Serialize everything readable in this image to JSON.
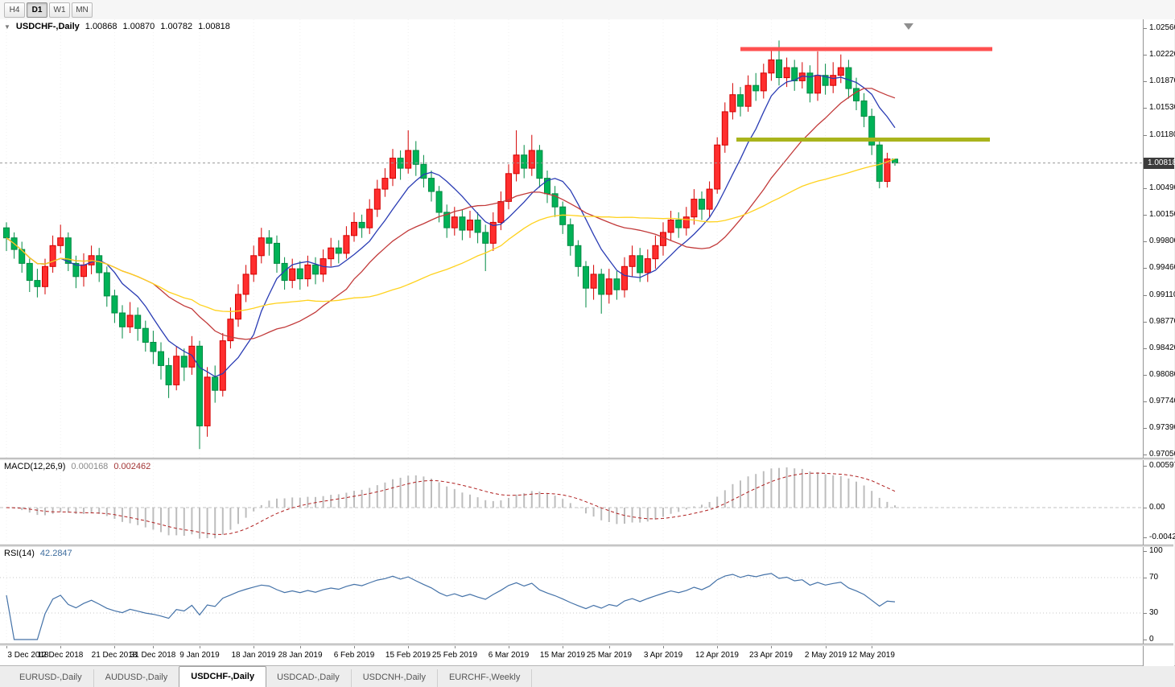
{
  "toolbar": {
    "timeframes": [
      {
        "label": "H4",
        "active": false
      },
      {
        "label": "D1",
        "active": true
      },
      {
        "label": "W1",
        "active": false
      },
      {
        "label": "MN",
        "active": false
      }
    ]
  },
  "chart": {
    "header": {
      "symbol": "USDCHF-,Daily",
      "open": "1.00868",
      "high": "1.00870",
      "low": "1.00782",
      "close": "1.00818"
    },
    "price_axis": {
      "current": {
        "label": "1.00818",
        "value": 1.00818
      },
      "ticks": [
        {
          "label": "1.02560",
          "value": 1.0256
        },
        {
          "label": "1.02220",
          "value": 1.0222
        },
        {
          "label": "1.01870",
          "value": 1.0187
        },
        {
          "label": "1.01530",
          "value": 1.0153
        },
        {
          "label": "1.01180",
          "value": 1.0118
        },
        {
          "label": "1.00490",
          "value": 1.0049
        },
        {
          "label": "1.00150",
          "value": 1.0015
        },
        {
          "label": "0.99800",
          "value": 0.998
        },
        {
          "label": "0.99460",
          "value": 0.9946
        },
        {
          "label": "0.99110",
          "value": 0.9911
        },
        {
          "label": "0.98770",
          "value": 0.9877
        },
        {
          "label": "0.98420",
          "value": 0.9842
        },
        {
          "label": "0.98080",
          "value": 0.9808
        },
        {
          "label": "0.97740",
          "value": 0.9774
        },
        {
          "label": "0.97390",
          "value": 0.9739
        },
        {
          "label": "0.97050",
          "value": 0.9705
        }
      ]
    }
  },
  "macd": {
    "label": "MACD(12,26,9)",
    "main_value": "0.000168",
    "signal_value": "0.002462",
    "histogram_color": "#bdbdbd",
    "signal_color": "#b02020",
    "axis": [
      {
        "label": "0.00597",
        "value": 0.00597
      },
      {
        "label": "0.00",
        "value": 0
      },
      {
        "label": "-0.00424",
        "value": -0.00424
      }
    ]
  },
  "rsi": {
    "label": "RSI(14)",
    "value": "42.2847",
    "line_color": "#4472a8",
    "levels": [
      70,
      30
    ],
    "axis": [
      {
        "label": "100",
        "value": 100
      },
      {
        "label": "70",
        "value": 70
      },
      {
        "label": "30",
        "value": 30
      },
      {
        "label": "0",
        "value": 0
      }
    ]
  },
  "tabs": {
    "items": [
      {
        "label": "EURUSD-,Daily",
        "active": false
      },
      {
        "label": "AUDUSD-,Daily",
        "active": false
      },
      {
        "label": "USDCHF-,Daily",
        "active": true
      },
      {
        "label": "USDCAD-,Daily",
        "active": false
      },
      {
        "label": "USDCNH-,Daily",
        "active": false
      },
      {
        "label": "EURCHF-,Weekly",
        "active": false
      }
    ]
  },
  "chart_data": {
    "type": "candlestick",
    "title": "USDCHF-,Daily",
    "y_range": [
      0.9705,
      1.0256
    ],
    "bull_color": "#ff2e2e",
    "bull_stroke": "#d40000",
    "bear_color": "#00b257",
    "bear_stroke": "#008a43",
    "moving_averages": [
      {
        "period": 8,
        "color": "#2a3cb4"
      },
      {
        "period": 20,
        "color": "#c23a3a"
      },
      {
        "period": 40,
        "color": "#ffd21e"
      }
    ],
    "levels": [
      {
        "name": "resistance",
        "price": 1.0229,
        "i1": 95.0,
        "i2": 127.6,
        "color": "#ff5050",
        "width": 5
      },
      {
        "name": "support",
        "price": 1.0112,
        "i1": 94.5,
        "i2": 127.3,
        "color": "#a9b41c",
        "width": 5
      }
    ],
    "x_labels": [
      [
        "3 Dec 2018",
        0
      ],
      [
        "12 Dec 2018",
        7
      ],
      [
        "21 Dec 2018",
        14
      ],
      [
        "31 Dec 2018",
        19
      ],
      [
        "9 Jan 2019",
        25
      ],
      [
        "18 Jan 2019",
        32
      ],
      [
        "28 Jan 2019",
        38
      ],
      [
        "6 Feb 2019",
        45
      ],
      [
        "15 Feb 2019",
        52
      ],
      [
        "25 Feb 2019",
        58
      ],
      [
        "6 Mar 2019",
        65
      ],
      [
        "15 Mar 2019",
        72
      ],
      [
        "25 Mar 2019",
        78
      ],
      [
        "3 Apr 2019",
        85
      ],
      [
        "12 Apr 2019",
        92
      ],
      [
        "23 Apr 2019",
        99
      ],
      [
        "2 May 2019",
        106
      ],
      [
        "12 May 2019",
        112
      ]
    ],
    "candles": [
      [
        0.9998,
        1.0005,
        0.9968,
        0.9985
      ],
      [
        0.9985,
        0.9992,
        0.9958,
        0.997
      ],
      [
        0.997,
        0.998,
        0.994,
        0.9952
      ],
      [
        0.9952,
        0.9958,
        0.9915,
        0.993
      ],
      [
        0.993,
        0.9945,
        0.9908,
        0.9922
      ],
      [
        0.9922,
        0.9958,
        0.9912,
        0.9948
      ],
      [
        0.9948,
        0.9988,
        0.994,
        0.9975
      ],
      [
        0.9975,
        1.0002,
        0.9965,
        0.9985
      ],
      [
        0.9985,
        0.9992,
        0.9942,
        0.9952
      ],
      [
        0.9952,
        0.9962,
        0.992,
        0.9935
      ],
      [
        0.9935,
        0.9965,
        0.9922,
        0.995
      ],
      [
        0.995,
        0.9975,
        0.9938,
        0.9962
      ],
      [
        0.9962,
        0.9972,
        0.9928,
        0.994
      ],
      [
        0.994,
        0.9948,
        0.9896,
        0.991
      ],
      [
        0.991,
        0.9918,
        0.9875,
        0.9888
      ],
      [
        0.9888,
        0.9898,
        0.9855,
        0.987
      ],
      [
        0.987,
        0.9902,
        0.9862,
        0.9885
      ],
      [
        0.9885,
        0.9895,
        0.9852,
        0.9868
      ],
      [
        0.9868,
        0.9878,
        0.9838,
        0.985
      ],
      [
        0.985,
        0.9865,
        0.9822,
        0.9838
      ],
      [
        0.9838,
        0.985,
        0.9802,
        0.982
      ],
      [
        0.982,
        0.983,
        0.9778,
        0.9795
      ],
      [
        0.9795,
        0.9845,
        0.9788,
        0.9832
      ],
      [
        0.9832,
        0.9842,
        0.98,
        0.9818
      ],
      [
        0.9818,
        0.9858,
        0.9808,
        0.9845
      ],
      [
        0.9845,
        0.9852,
        0.9712,
        0.9742
      ],
      [
        0.9742,
        0.9818,
        0.9728,
        0.9805
      ],
      [
        0.9805,
        0.982,
        0.9772,
        0.9788
      ],
      [
        0.9788,
        0.9862,
        0.978,
        0.9852
      ],
      [
        0.9852,
        0.9895,
        0.9842,
        0.988
      ],
      [
        0.988,
        0.9925,
        0.987,
        0.9912
      ],
      [
        0.9912,
        0.995,
        0.9902,
        0.9938
      ],
      [
        0.9938,
        0.9975,
        0.9928,
        0.9962
      ],
      [
        0.9962,
        0.9998,
        0.9952,
        0.9985
      ],
      [
        0.9985,
        0.9995,
        0.9962,
        0.9978
      ],
      [
        0.9978,
        0.9988,
        0.994,
        0.9952
      ],
      [
        0.9952,
        0.996,
        0.9918,
        0.993
      ],
      [
        0.993,
        0.9958,
        0.992,
        0.9945
      ],
      [
        0.9945,
        0.9955,
        0.9918,
        0.9932
      ],
      [
        0.9932,
        0.9962,
        0.9922,
        0.995
      ],
      [
        0.995,
        0.996,
        0.9925,
        0.9938
      ],
      [
        0.9938,
        0.997,
        0.9928,
        0.9958
      ],
      [
        0.9958,
        0.9985,
        0.9948,
        0.9972
      ],
      [
        0.9972,
        0.9982,
        0.9952,
        0.9965
      ],
      [
        0.9965,
        1.0,
        0.9958,
        0.9988
      ],
      [
        0.9988,
        1.0018,
        0.998,
        1.0005
      ],
      [
        1.0005,
        1.0015,
        0.9985,
        0.9998
      ],
      [
        0.9998,
        1.0035,
        0.999,
        1.0022
      ],
      [
        1.0022,
        1.006,
        1.0012,
        1.0048
      ],
      [
        1.0048,
        1.0075,
        1.0038,
        1.0062
      ],
      [
        1.0062,
        1.01,
        1.0052,
        1.0088
      ],
      [
        1.0088,
        1.0098,
        1.006,
        1.0075
      ],
      [
        1.0075,
        1.0124,
        1.0068,
        1.0098
      ],
      [
        1.0098,
        1.011,
        1.0065,
        1.008
      ],
      [
        1.008,
        1.0092,
        1.005,
        1.0062
      ],
      [
        1.0062,
        1.0072,
        1.0032,
        1.0045
      ],
      [
        1.0045,
        1.0052,
        1.0005,
        1.0018
      ],
      [
        1.0018,
        1.0028,
        0.9985,
        0.9998
      ],
      [
        0.9998,
        1.0025,
        0.9988,
        1.0012
      ],
      [
        1.0012,
        1.0022,
        0.9982,
        0.9995
      ],
      [
        0.9995,
        1.002,
        0.9985,
        1.0008
      ],
      [
        1.0008,
        1.0018,
        0.9978,
        0.9992
      ],
      [
        0.9992,
        1.0002,
        0.9942,
        0.9978
      ],
      [
        0.9978,
        1.0018,
        0.9968,
        1.0005
      ],
      [
        1.0005,
        1.0045,
        0.9995,
        1.0032
      ],
      [
        1.0032,
        1.008,
        1.0022,
        1.0068
      ],
      [
        1.0068,
        1.0124,
        1.0058,
        1.0092
      ],
      [
        1.0092,
        1.0105,
        1.0062,
        1.0075
      ],
      [
        1.0075,
        1.0118,
        1.0065,
        1.0098
      ],
      [
        1.0098,
        1.0105,
        1.005,
        1.0062
      ],
      [
        1.0062,
        1.0072,
        1.003,
        1.0042
      ],
      [
        1.0042,
        1.0052,
        1.0012,
        1.0025
      ],
      [
        1.0025,
        1.0032,
        0.999,
        1.0002
      ],
      [
        1.0002,
        1.001,
        0.9962,
        0.9975
      ],
      [
        0.9975,
        0.9982,
        0.9935,
        0.9948
      ],
      [
        0.9948,
        0.9955,
        0.9895,
        0.992
      ],
      [
        0.992,
        0.995,
        0.9905,
        0.9938
      ],
      [
        0.9938,
        0.9945,
        0.9887,
        0.9912
      ],
      [
        0.9912,
        0.9945,
        0.99,
        0.9932
      ],
      [
        0.9932,
        0.9942,
        0.9905,
        0.9918
      ],
      [
        0.9918,
        0.996,
        0.9908,
        0.9948
      ],
      [
        0.9948,
        0.9975,
        0.9935,
        0.9962
      ],
      [
        0.9962,
        0.9972,
        0.9928,
        0.994
      ],
      [
        0.994,
        0.997,
        0.9928,
        0.9958
      ],
      [
        0.9958,
        0.9988,
        0.9945,
        0.9975
      ],
      [
        0.9975,
        1.0005,
        0.9962,
        0.9992
      ],
      [
        0.9992,
        1.002,
        0.9982,
        1.0008
      ],
      [
        1.0008,
        1.0018,
        0.9985,
        0.9998
      ],
      [
        0.9998,
        1.0025,
        0.9988,
        1.0012
      ],
      [
        1.0012,
        1.0048,
        1.0002,
        1.0035
      ],
      [
        1.0035,
        1.0045,
        1.0008,
        1.0022
      ],
      [
        1.0022,
        1.0058,
        1.0012,
        1.0048
      ],
      [
        1.0048,
        1.0115,
        1.0042,
        1.0105
      ],
      [
        1.0105,
        1.016,
        1.0095,
        1.0148
      ],
      [
        1.0148,
        1.0185,
        1.0138,
        1.017
      ],
      [
        1.017,
        1.018,
        1.0142,
        1.0155
      ],
      [
        1.0155,
        1.0195,
        1.0148,
        1.0182
      ],
      [
        1.0182,
        1.0198,
        1.0162,
        1.0175
      ],
      [
        1.0175,
        1.021,
        1.0165,
        1.0198
      ],
      [
        1.0198,
        1.0228,
        1.0188,
        1.0215
      ],
      [
        1.0215,
        1.024,
        1.0182,
        1.0192
      ],
      [
        1.0192,
        1.0218,
        1.018,
        1.0205
      ],
      [
        1.0205,
        1.0215,
        1.0175,
        1.0188
      ],
      [
        1.0188,
        1.0212,
        1.0178,
        1.0198
      ],
      [
        1.0198,
        1.0208,
        1.016,
        1.0172
      ],
      [
        1.0172,
        1.0226,
        1.0162,
        1.0195
      ],
      [
        1.0195,
        1.021,
        1.017,
        1.0182
      ],
      [
        1.0182,
        1.0212,
        1.0172,
        1.0195
      ],
      [
        1.0195,
        1.0222,
        1.0185,
        1.0205
      ],
      [
        1.0205,
        1.0215,
        1.0165,
        1.0178
      ],
      [
        1.0178,
        1.0192,
        1.015,
        1.0162
      ],
      [
        1.0162,
        1.0172,
        1.0128,
        1.0142
      ],
      [
        1.0142,
        1.0152,
        1.0092,
        1.0105
      ],
      [
        1.0105,
        1.0112,
        1.0049,
        1.0058
      ],
      [
        1.0058,
        1.0095,
        1.005,
        1.0087
      ],
      [
        1.00868,
        1.0087,
        1.00782,
        1.00818
      ]
    ]
  }
}
